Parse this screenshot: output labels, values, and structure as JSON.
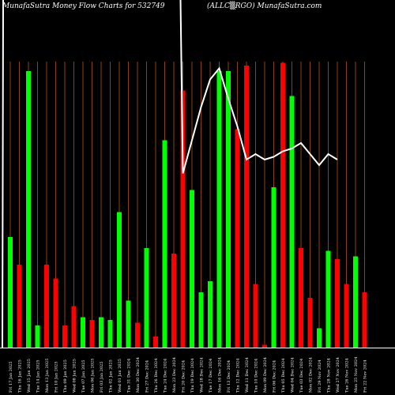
{
  "header": {
    "title_left": "MunafaSutra  Money Flow  Charts for 532749",
    "title_right": "(ALLC▒RGO) MunafaSutra.com"
  },
  "colors": {
    "background": "#000000",
    "up": "#00ff00",
    "down": "#ff0000",
    "grid": "#8B4513",
    "line": "#ffffff"
  },
  "chart_data": {
    "type": "bar",
    "title": "MunafaSutra  Money Flow  Charts for 532749",
    "grid": true,
    "ylim": [
      0,
      100
    ],
    "bars": [
      {
        "label": "Fri 17 Jan 2025",
        "value": 40,
        "dir": "up"
      },
      {
        "label": "Thu 16 Jan 2025",
        "value": 30,
        "dir": "down"
      },
      {
        "label": "Wed 15 Jan 2025",
        "value": 100,
        "dir": "up"
      },
      {
        "label": "Tue 14 Jan 2025",
        "value": 8,
        "dir": "up"
      },
      {
        "label": "Mon 13 Jan 2025",
        "value": 30,
        "dir": "down"
      },
      {
        "label": "Fri 10 Jan 2025",
        "value": 25,
        "dir": "down"
      },
      {
        "label": "Thu 09 Jan 2025",
        "value": 8,
        "dir": "down"
      },
      {
        "label": "Wed 08 Jan 2025",
        "value": 15,
        "dir": "down"
      },
      {
        "label": "Tue 07 Jan 2025",
        "value": 11,
        "dir": "up"
      },
      {
        "label": "Mon 06 Jan 2025",
        "value": 10,
        "dir": "down"
      },
      {
        "label": "Fri 03 Jan 2025",
        "value": 11,
        "dir": "up"
      },
      {
        "label": "Thu 02 Jan 2025",
        "value": 10,
        "dir": "up"
      },
      {
        "label": "Wed 01 Jan 2025",
        "value": 49,
        "dir": "up"
      },
      {
        "label": "Tue 31 Dec 2024",
        "value": 17,
        "dir": "up"
      },
      {
        "label": "Mon 30 Dec 2024",
        "value": 9,
        "dir": "down"
      },
      {
        "label": "Fri 27 Dec 2024",
        "value": 36,
        "dir": "up"
      },
      {
        "label": "Thu 26 Dec 2024",
        "value": 4,
        "dir": "down"
      },
      {
        "label": "Tue 24 Dec 2024",
        "value": 75,
        "dir": "up"
      },
      {
        "label": "Mon 23 Dec 2024",
        "value": 34,
        "dir": "down"
      },
      {
        "label": "Fri 20 Dec 2024",
        "value": 93,
        "dir": "down"
      },
      {
        "label": "Thu 19 Dec 2024",
        "value": 57,
        "dir": "up"
      },
      {
        "label": "Wed 18 Dec 2024",
        "value": 20,
        "dir": "up"
      },
      {
        "label": "Tue 17 Dec 2024",
        "value": 24,
        "dir": "up"
      },
      {
        "label": "Mon 16 Dec 2024",
        "value": 100,
        "dir": "up"
      },
      {
        "label": "Fri 13 Dec 2024",
        "value": 100,
        "dir": "up"
      },
      {
        "label": "Thu 12 Dec 2024",
        "value": 79,
        "dir": "down"
      },
      {
        "label": "Wed 11 Dec 2024",
        "value": 102,
        "dir": "down"
      },
      {
        "label": "Tue 10 Dec 2024",
        "value": 23,
        "dir": "down"
      },
      {
        "label": "Mon 09 Dec 2024",
        "value": 1,
        "dir": "down"
      },
      {
        "label": "Fri 06 Dec 2024",
        "value": 58,
        "dir": "up"
      },
      {
        "label": "Thu 05 Dec 2024",
        "value": 103,
        "dir": "down"
      },
      {
        "label": "Wed 04 Dec 2024",
        "value": 91,
        "dir": "up"
      },
      {
        "label": "Tue 03 Dec 2024",
        "value": 36,
        "dir": "down"
      },
      {
        "label": "Mon 02 Dec 2024",
        "value": 18,
        "dir": "down"
      },
      {
        "label": "Fri 29 Nov 2024",
        "value": 7,
        "dir": "up"
      },
      {
        "label": "Thu 28 Nov 2024",
        "value": 35,
        "dir": "up"
      },
      {
        "label": "Wed 27 Nov 2024",
        "value": 32,
        "dir": "down"
      },
      {
        "label": "Tue 26 Nov 2024",
        "value": 23,
        "dir": "down"
      },
      {
        "label": "Mon 25 Nov 2024",
        "value": 33,
        "dir": "up"
      },
      {
        "label": "Fri 22 Nov 2024",
        "value": 20,
        "dir": "down"
      }
    ],
    "line": {
      "start_index": 19,
      "values": [
        63,
        75,
        87,
        97,
        101,
        90,
        80,
        68,
        70,
        68,
        69,
        71,
        72,
        74,
        70,
        66,
        70,
        68
      ]
    }
  }
}
